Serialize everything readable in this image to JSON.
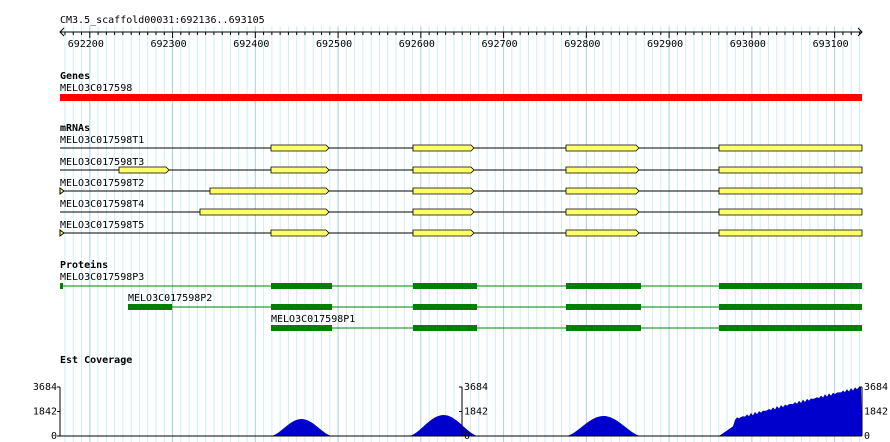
{
  "header": {
    "title": "CM3.5_scaffold00031:692136..693105"
  },
  "ruler": {
    "labels": [
      692200,
      692300,
      692400,
      692500,
      692600,
      692700,
      692800,
      692900,
      693000,
      693100
    ]
  },
  "tracks": {
    "genes": {
      "title": "Genes",
      "features": [
        "MELO3C017598"
      ]
    },
    "mrnas": {
      "title": "mRNAs",
      "features": [
        "MELO3C017598T1",
        "MELO3C017598T3",
        "MELO3C017598T2",
        "MELO3C017598T4",
        "MELO3C017598T5"
      ]
    },
    "proteins": {
      "title": "Proteins",
      "features": [
        "MELO3C017598P3",
        "MELO3C017598P2",
        "MELO3C017598P1"
      ]
    },
    "coverage": {
      "title": "Est Coverage",
      "axis_labels": [
        3684,
        1842,
        0
      ]
    }
  }
}
